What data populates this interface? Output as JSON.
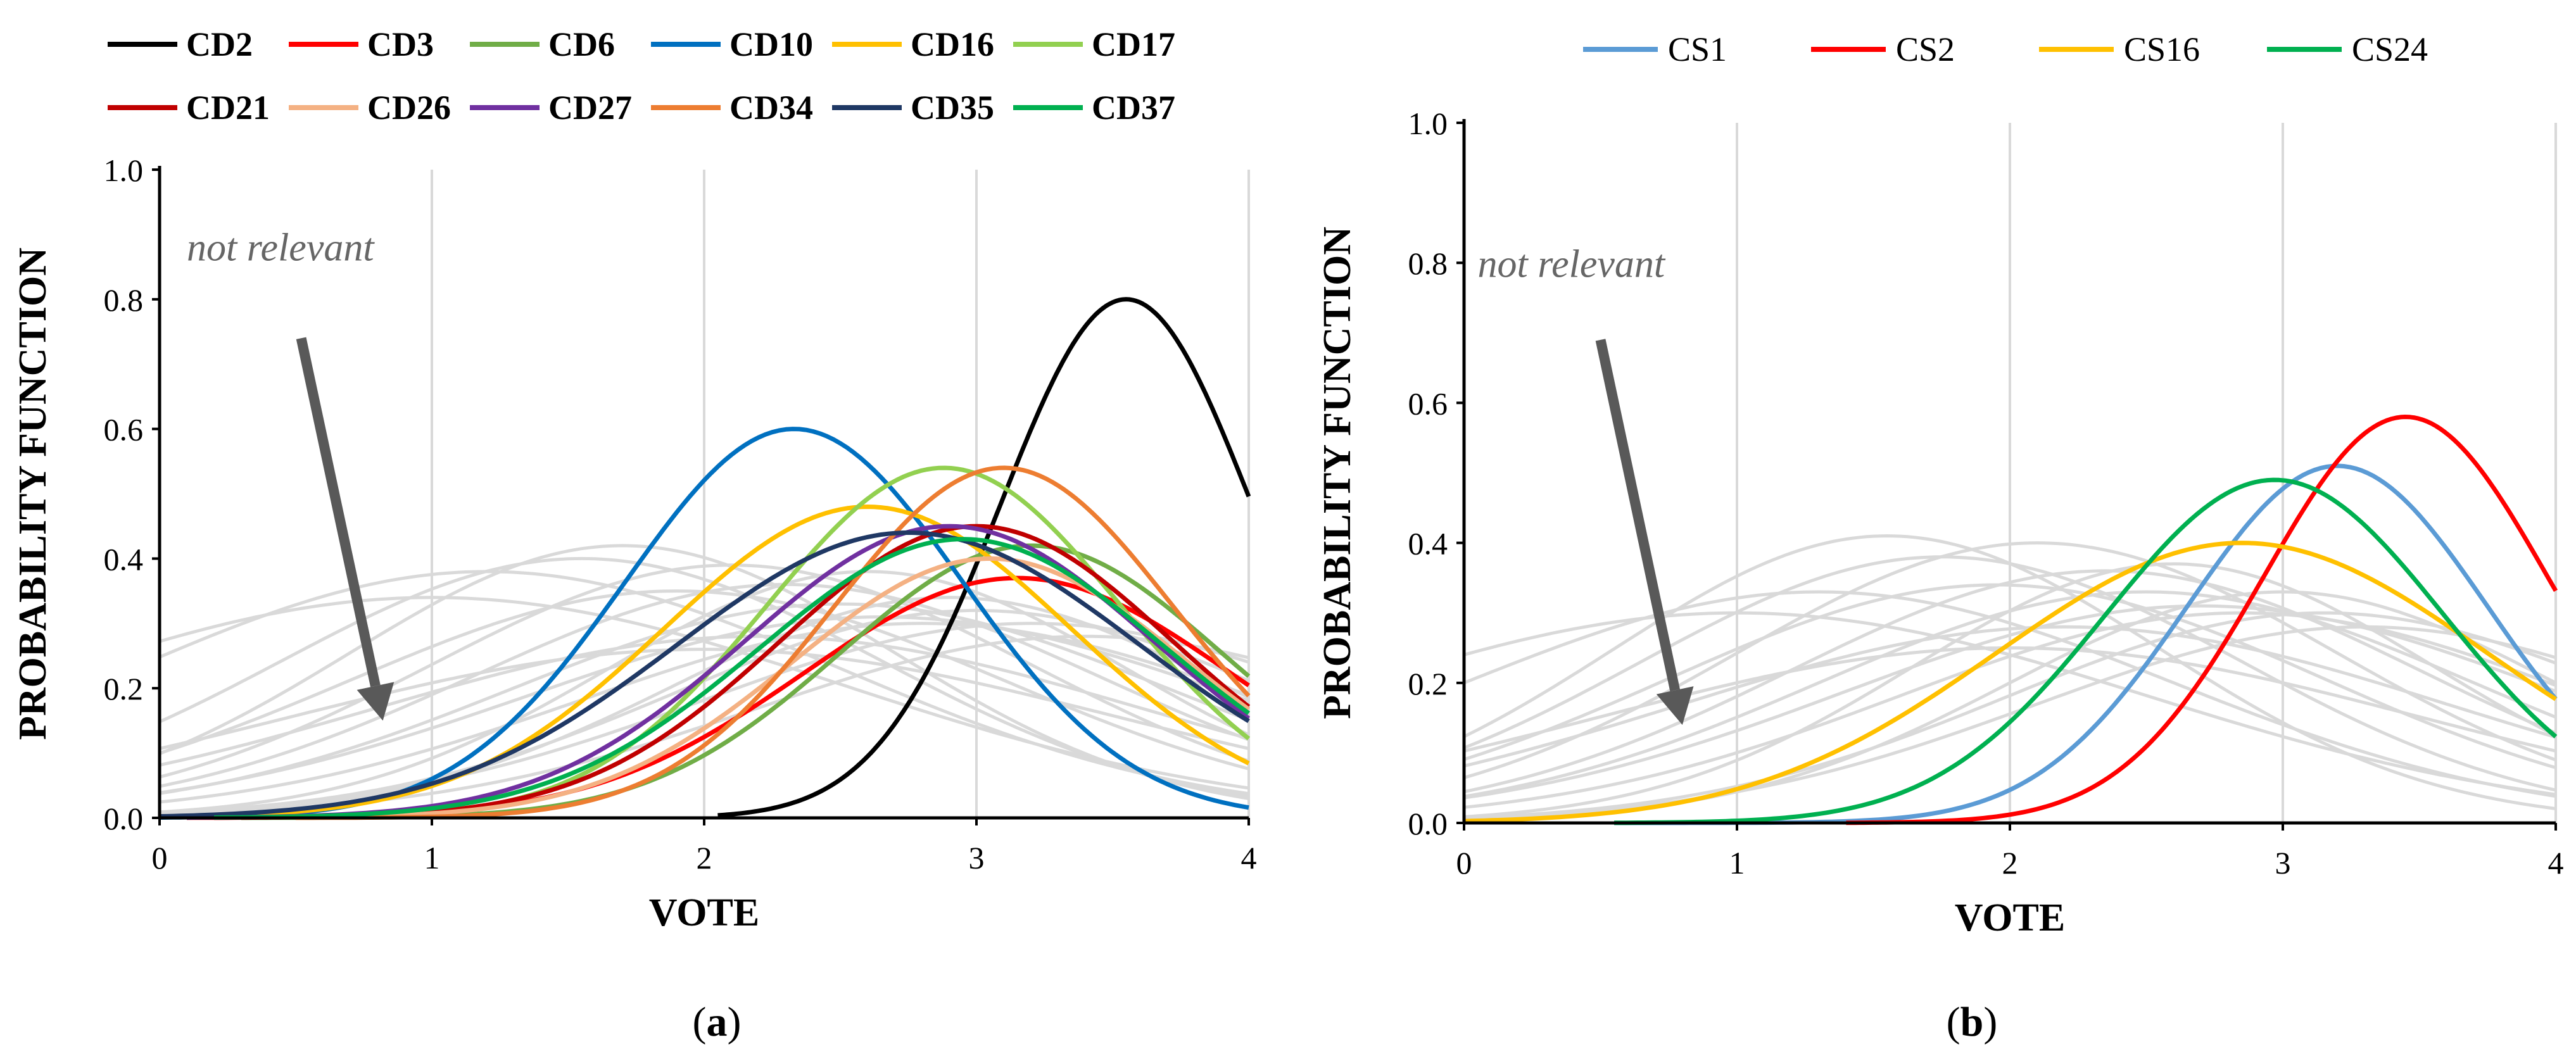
{
  "colors": {
    "background": "#ffffff",
    "grid": "#d9d9d9",
    "background_curve": "#d9d9d9",
    "axis": "#000000",
    "annotation": "#666666",
    "arrow": "#595959"
  },
  "chart_data": [
    {
      "type": "line",
      "panel_label": "a",
      "ylabel": "PROBABILITY FUNCTION",
      "xlabel": "VOTE",
      "xlim": [
        0,
        4
      ],
      "ylim": [
        0,
        1
      ],
      "x_ticks": [
        "0",
        "1",
        "2",
        "3",
        "4"
      ],
      "y_ticks": [
        "0.0",
        "0.2",
        "0.4",
        "0.6",
        "0.8",
        "1.0"
      ],
      "grid": "vertical",
      "legend_position": "top",
      "annotation": {
        "text": "not relevant",
        "x": 0.1,
        "y": 0.86,
        "arrow_from": [
          0.52,
          0.74
        ],
        "arrow_to": [
          0.82,
          0.15
        ]
      },
      "series": [
        {
          "name": "CD2",
          "color": "#000000",
          "peak_x": 3.55,
          "peak_y": 0.8,
          "sigma": 0.46,
          "x_start": 2.05
        },
        {
          "name": "CD3",
          "color": "#ff0000",
          "peak_x": 3.15,
          "peak_y": 0.37,
          "sigma": 0.78,
          "x_start": 0.1
        },
        {
          "name": "CD6",
          "color": "#70ad47",
          "peak_x": 3.2,
          "peak_y": 0.42,
          "sigma": 0.7,
          "x_start": 0.3
        },
        {
          "name": "CD10",
          "color": "#0070c0",
          "peak_x": 2.33,
          "peak_y": 0.6,
          "sigma": 0.62,
          "x_start": 0.0
        },
        {
          "name": "CD16",
          "color": "#ffc000",
          "peak_x": 2.6,
          "peak_y": 0.48,
          "sigma": 0.75,
          "x_start": 0.0
        },
        {
          "name": "CD17",
          "color": "#92d050",
          "peak_x": 2.88,
          "peak_y": 0.54,
          "sigma": 0.65,
          "x_start": 0.5
        },
        {
          "name": "CD21",
          "color": "#c00000",
          "peak_x": 3.0,
          "peak_y": 0.45,
          "sigma": 0.72,
          "x_start": 0.2
        },
        {
          "name": "CD26",
          "color": "#f4b183",
          "peak_x": 3.05,
          "peak_y": 0.4,
          "sigma": 0.72,
          "x_start": 0.5
        },
        {
          "name": "CD27",
          "color": "#7030a0",
          "peak_x": 2.9,
          "peak_y": 0.45,
          "sigma": 0.75,
          "x_start": 0.1
        },
        {
          "name": "CD34",
          "color": "#ed7d31",
          "peak_x": 3.1,
          "peak_y": 0.54,
          "sigma": 0.62,
          "x_start": 0.5
        },
        {
          "name": "CD35",
          "color": "#1f3864",
          "peak_x": 2.75,
          "peak_y": 0.44,
          "sigma": 0.85,
          "x_start": 0.0
        },
        {
          "name": "CD37",
          "color": "#00b050",
          "peak_x": 2.95,
          "peak_y": 0.43,
          "sigma": 0.75,
          "x_start": 0.2
        }
      ],
      "background_curves": [
        {
          "peak_x": 1.2,
          "peak_y": 0.38,
          "sigma": 1.3
        },
        {
          "peak_x": 1.55,
          "peak_y": 0.4,
          "sigma": 1.1
        },
        {
          "peak_x": 1.7,
          "peak_y": 0.42,
          "sigma": 1.0
        },
        {
          "peak_x": 1.9,
          "peak_y": 0.35,
          "sigma": 1.2
        },
        {
          "peak_x": 2.1,
          "peak_y": 0.39,
          "sigma": 1.1
        },
        {
          "peak_x": 2.3,
          "peak_y": 0.36,
          "sigma": 1.15
        },
        {
          "peak_x": 2.5,
          "peak_y": 0.33,
          "sigma": 1.2
        },
        {
          "peak_x": 2.65,
          "peak_y": 0.31,
          "sigma": 1.3
        },
        {
          "peak_x": 2.8,
          "peak_y": 0.3,
          "sigma": 1.25
        },
        {
          "peak_x": 2.9,
          "peak_y": 0.34,
          "sigma": 1.0
        },
        {
          "peak_x": 3.0,
          "peak_y": 0.32,
          "sigma": 1.1
        },
        {
          "peak_x": 3.2,
          "peak_y": 0.3,
          "sigma": 1.2
        },
        {
          "peak_x": 2.2,
          "peak_y": 0.28,
          "sigma": 1.4
        },
        {
          "peak_x": 2.0,
          "peak_y": 0.26,
          "sigma": 1.5
        },
        {
          "peak_x": 1.0,
          "peak_y": 0.34,
          "sigma": 1.5
        },
        {
          "peak_x": 2.6,
          "peak_y": 0.38,
          "sigma": 0.95
        },
        {
          "peak_x": 3.4,
          "peak_y": 0.28,
          "sigma": 1.2
        }
      ]
    },
    {
      "type": "line",
      "panel_label": "b",
      "ylabel": "PROBABILITY FUNCTION",
      "xlabel": "VOTE",
      "xlim": [
        0,
        4
      ],
      "ylim": [
        0,
        1
      ],
      "x_ticks": [
        "0",
        "1",
        "2",
        "3",
        "4"
      ],
      "y_ticks": [
        "0.0",
        "0.2",
        "0.4",
        "0.6",
        "0.8",
        "1.0"
      ],
      "grid": "vertical",
      "legend_position": "top",
      "annotation": {
        "text": "not relevant",
        "x": 0.05,
        "y": 0.78,
        "arrow_from": [
          0.5,
          0.69
        ],
        "arrow_to": [
          0.8,
          0.14
        ]
      },
      "series": [
        {
          "name": "CS1",
          "color": "#5b9bd5",
          "peak_x": 3.2,
          "peak_y": 0.51,
          "sigma": 0.55,
          "x_start": 0.55
        },
        {
          "name": "CS2",
          "color": "#ff0000",
          "peak_x": 3.45,
          "peak_y": 0.58,
          "sigma": 0.52,
          "x_start": 1.4
        },
        {
          "name": "CS16",
          "color": "#ffc000",
          "peak_x": 2.85,
          "peak_y": 0.4,
          "sigma": 0.9,
          "x_start": 0.0
        },
        {
          "name": "CS24",
          "color": "#00b050",
          "peak_x": 2.97,
          "peak_y": 0.49,
          "sigma": 0.62,
          "x_start": 0.55
        }
      ],
      "background_curves": [
        {
          "peak_x": 1.3,
          "peak_y": 0.33,
          "sigma": 1.3
        },
        {
          "peak_x": 1.55,
          "peak_y": 0.41,
          "sigma": 1.0
        },
        {
          "peak_x": 1.75,
          "peak_y": 0.38,
          "sigma": 1.1
        },
        {
          "peak_x": 1.95,
          "peak_y": 0.34,
          "sigma": 1.2
        },
        {
          "peak_x": 2.1,
          "peak_y": 0.4,
          "sigma": 1.1
        },
        {
          "peak_x": 2.35,
          "peak_y": 0.36,
          "sigma": 1.15
        },
        {
          "peak_x": 2.5,
          "peak_y": 0.33,
          "sigma": 1.2
        },
        {
          "peak_x": 2.7,
          "peak_y": 0.31,
          "sigma": 1.3
        },
        {
          "peak_x": 2.85,
          "peak_y": 0.3,
          "sigma": 1.25
        },
        {
          "peak_x": 3.0,
          "peak_y": 0.33,
          "sigma": 1.0
        },
        {
          "peak_x": 3.15,
          "peak_y": 0.3,
          "sigma": 1.15
        },
        {
          "peak_x": 3.3,
          "peak_y": 0.28,
          "sigma": 1.2
        },
        {
          "peak_x": 2.2,
          "peak_y": 0.28,
          "sigma": 1.4
        },
        {
          "peak_x": 2.0,
          "peak_y": 0.25,
          "sigma": 1.5
        },
        {
          "peak_x": 1.0,
          "peak_y": 0.3,
          "sigma": 1.5
        },
        {
          "peak_x": 2.6,
          "peak_y": 0.37,
          "sigma": 0.95
        }
      ]
    }
  ]
}
